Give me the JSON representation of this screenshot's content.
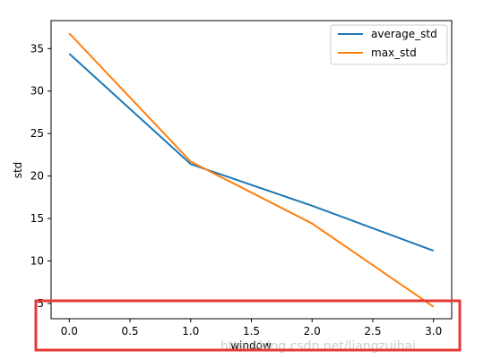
{
  "chart_data": {
    "type": "line",
    "title": "",
    "xlabel": "window",
    "ylabel": "std",
    "x": [
      0.0,
      1.0,
      2.0,
      3.0
    ],
    "xlim": [
      -0.15,
      3.15
    ],
    "ylim": [
      3.2,
      38.3
    ],
    "xticks": [
      "0.0",
      "0.5",
      "1.0",
      "1.5",
      "2.0",
      "2.5",
      "3.0"
    ],
    "yticks": [
      "5",
      "10",
      "15",
      "20",
      "25",
      "30",
      "35"
    ],
    "series": [
      {
        "name": "average_std",
        "color": "#1f77b4",
        "values": [
          34.4,
          21.4,
          16.5,
          11.2
        ]
      },
      {
        "name": "max_std",
        "color": "#ff7f0e",
        "values": [
          36.8,
          21.7,
          14.4,
          4.6
        ]
      }
    ],
    "legend": "top-right",
    "grid": false,
    "highlight_box_color": "#e53935",
    "watermark": "http://blog.csdn.net/liangzuihai"
  }
}
